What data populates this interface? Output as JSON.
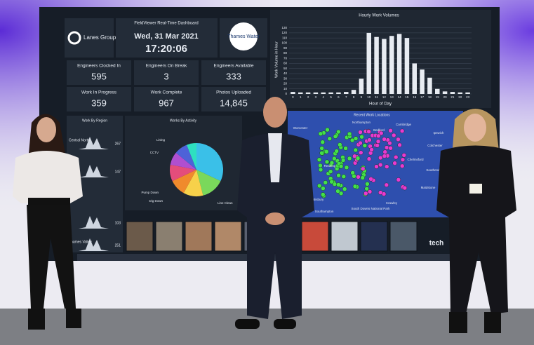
{
  "dashboard": {
    "title": "FieldViewer Real-Time Dashboard",
    "company": "Lanes Group plc",
    "client": "Thames Water",
    "date": "Wed, 31 Mar 2021",
    "time": "17:20:06",
    "tiles": [
      {
        "label": "Engineers Clocked In",
        "value": "595"
      },
      {
        "label": "Engineers On Break",
        "value": "3"
      },
      {
        "label": "Engineers Available",
        "value": "333"
      },
      {
        "label": "Work In Progress",
        "value": "359"
      },
      {
        "label": "Work Complete",
        "value": "967"
      },
      {
        "label": "Photos Uploaded",
        "value": "14,845"
      }
    ],
    "regions": {
      "title": "Work By Region",
      "rows": [
        {
          "name": "Central North",
          "value": "267"
        },
        {
          "value": "147"
        },
        {
          "value": "103"
        },
        {
          "name": "Thames Valley",
          "value": "251"
        }
      ]
    },
    "activity": {
      "title": "Works By Activity",
      "labels": [
        "Lining",
        "CCTV",
        "Pump Down",
        "Dig Down",
        "Line Clean"
      ]
    },
    "map": {
      "title": "Recent Work Locations",
      "places": [
        "Worcester",
        "Northampton",
        "Cambridge",
        "Bedford",
        "Ipswich",
        "Colchester",
        "Chelmsford",
        "Southend-on-Sea",
        "Reading",
        "Maidstone",
        "Salisbury",
        "Southampton",
        "Crawley",
        "South Downs National Park"
      ]
    },
    "footer_brand": "tech"
  },
  "chart_data": {
    "type": "bar",
    "title": "Hourly Work Volumes",
    "x_label": "Hour of Day",
    "y_label": "Work Volume in Hour",
    "categories": [
      "0",
      "1",
      "2",
      "3",
      "4",
      "5",
      "6",
      "7",
      "8",
      "9",
      "10",
      "11",
      "12",
      "13",
      "14",
      "15",
      "16",
      "17",
      "18",
      "19",
      "20",
      "21",
      "22",
      "23"
    ],
    "values": [
      4,
      3,
      3,
      3,
      3,
      3,
      3,
      4,
      8,
      30,
      120,
      112,
      108,
      114,
      118,
      110,
      60,
      48,
      32,
      10,
      5,
      4,
      3,
      3
    ],
    "color": "#e8ecf2",
    "ylim": [
      0,
      135
    ],
    "yticks": [
      0,
      10,
      20,
      30,
      40,
      50,
      60,
      70,
      80,
      90,
      100,
      110,
      120,
      130
    ],
    "grid": true
  }
}
